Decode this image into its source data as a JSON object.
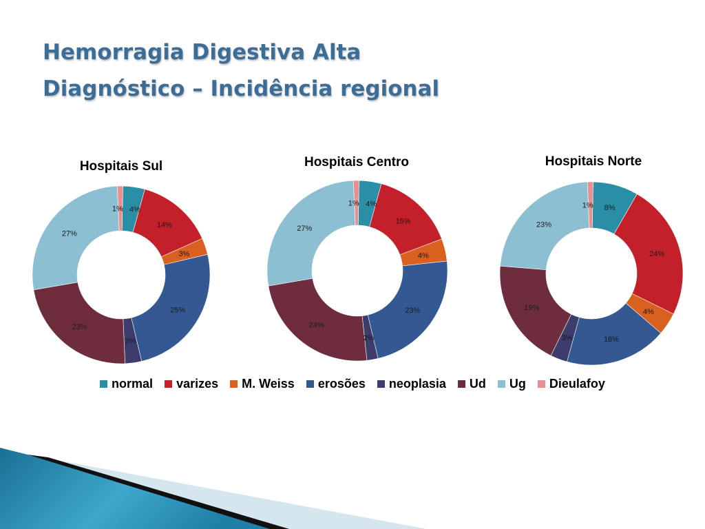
{
  "title": {
    "line1": "Hemorragia Digestiva Alta",
    "line2": "Diagnóstico – Incidência regional"
  },
  "chart_data": [
    {
      "type": "pie",
      "title": "Hospitais Sul",
      "categories": [
        "normal",
        "varizes",
        "M. Weiss",
        "erosões",
        "neoplasia",
        "Ud",
        "Ug",
        "Dieulafoy"
      ],
      "values": [
        4,
        14,
        3,
        25,
        3,
        23,
        27,
        1
      ],
      "labels": [
        "4%",
        "14%",
        "3%",
        "25%",
        "3%",
        "23%",
        "27%",
        "1%"
      ]
    },
    {
      "type": "pie",
      "title": "Hospitais Centro",
      "categories": [
        "normal",
        "varizes",
        "M. Weiss",
        "erosões",
        "neoplasia",
        "Ud",
        "Ug",
        "Dieulafoy"
      ],
      "values": [
        4,
        15,
        4,
        23,
        2,
        24,
        27,
        1
      ],
      "labels": [
        "4%",
        "15%",
        "4%",
        "23%",
        "2%",
        "24%",
        "27%",
        "1%"
      ]
    },
    {
      "type": "pie",
      "title": "Hospitais Norte",
      "categories": [
        "normal",
        "varizes",
        "M. Weiss",
        "erosões",
        "neoplasia",
        "Ud",
        "Ug",
        "Dieulafoy"
      ],
      "values": [
        8,
        24,
        4,
        18,
        3,
        19,
        23,
        1
      ],
      "labels": [
        "8%",
        "24%",
        "4%",
        "18%",
        "3%",
        "19%",
        "23%",
        "1%"
      ]
    }
  ],
  "legend": [
    {
      "label": "normal",
      "color": "#2a8fa6"
    },
    {
      "label": "varizes",
      "color": "#c4202a"
    },
    {
      "label": "M. Weiss",
      "color": "#d9601f"
    },
    {
      "label": "erosões",
      "color": "#345891"
    },
    {
      "label": "neoplasia",
      "color": "#3c3d6b"
    },
    {
      "label": "Ud",
      "color": "#6e2d3d"
    },
    {
      "label": "Ug",
      "color": "#8dbfd3"
    },
    {
      "label": "Dieulafoy",
      "color": "#e89090"
    }
  ]
}
